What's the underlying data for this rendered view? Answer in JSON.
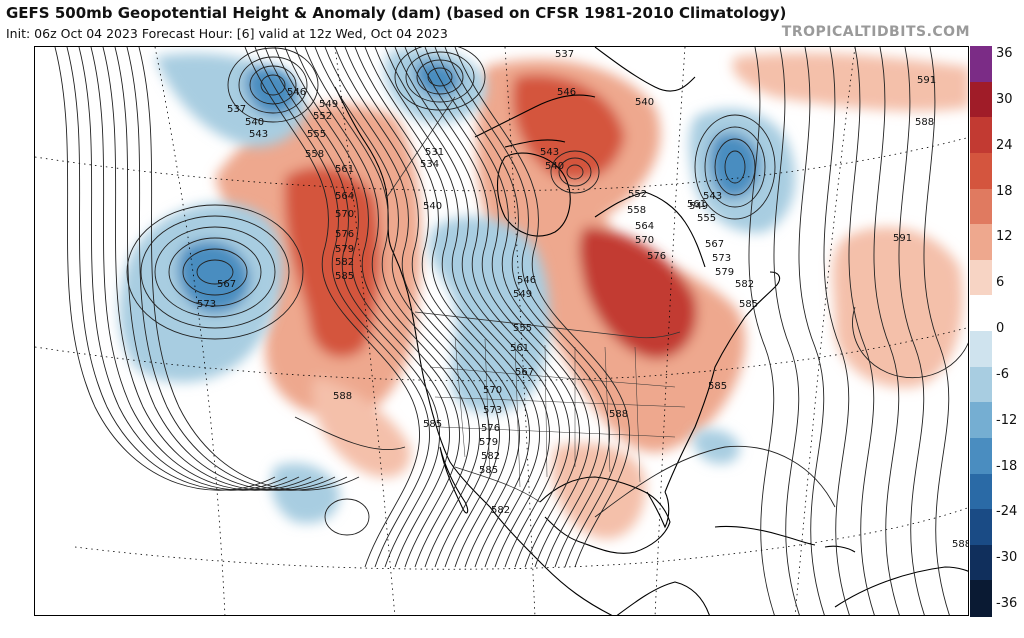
{
  "header": {
    "title": "GEFS 500mb Geopotential Height & Anomaly (dam) (based on CFSR 1981-2010 Climatology)",
    "subtitle": "Init: 06z Oct 04 2023   Forecast Hour: [6]   valid at 12z Wed, Oct 04 2023",
    "watermark": "TROPICALTIDBITS.COM"
  },
  "colorbar": {
    "labels": [
      "36",
      "30",
      "24",
      "18",
      "12",
      "6",
      "0",
      "-6",
      "-12",
      "-18",
      "-24",
      "-30",
      "-36"
    ],
    "colors": [
      "#7b2c86",
      "#a01c28",
      "#c23a32",
      "#d4553e",
      "#e07a60",
      "#eea88e",
      "#f7d4c4",
      "#ffffff",
      "#cfe3ee",
      "#a8cde1",
      "#75aed2",
      "#4a8dc0",
      "#2a6aa6",
      "#1a4b85",
      "#102f5c",
      "#0a1a33"
    ]
  },
  "map": {
    "anomalies": [
      {
        "sign": "negative",
        "strength": -21,
        "region": "Gulf of Alaska west"
      },
      {
        "sign": "negative",
        "strength": -18,
        "region": "Bering / Alaska north"
      },
      {
        "sign": "negative",
        "strength": -18,
        "region": "Arctic north of Alaska"
      },
      {
        "sign": "negative",
        "strength": -12,
        "region": "Northern Plains / Upper Midwest"
      },
      {
        "sign": "negative",
        "strength": -15,
        "region": "Labrador Sea"
      },
      {
        "sign": "negative",
        "strength": -6,
        "region": "Eastern Pacific near Baja"
      },
      {
        "sign": "negative",
        "strength": -6,
        "region": "Caribbean north of Cuba"
      },
      {
        "sign": "positive",
        "strength": 18,
        "region": "Pacific Northwest coast"
      },
      {
        "sign": "positive",
        "strength": 27,
        "region": "Great Lakes / Hudson Bay"
      },
      {
        "sign": "positive",
        "strength": 24,
        "region": "Northern Hudson / Baffin"
      },
      {
        "sign": "positive",
        "strength": 9,
        "region": "Central Atlantic"
      },
      {
        "sign": "positive",
        "strength": 9,
        "region": "Gulf of Mexico"
      },
      {
        "sign": "positive",
        "strength": 6,
        "region": "North Atlantic east"
      }
    ],
    "contour_labels": [
      "537",
      "540",
      "543",
      "546",
      "549",
      "552",
      "555",
      "558",
      "561",
      "564",
      "570",
      "576",
      "579",
      "582",
      "585",
      "567",
      "573",
      "588",
      "585",
      "582",
      "531",
      "534",
      "540",
      "537",
      "546",
      "540",
      "543",
      "540",
      "552",
      "558",
      "564",
      "570",
      "576",
      "561",
      "567",
      "573",
      "579",
      "582",
      "585",
      "555",
      "549",
      "543",
      "546",
      "549",
      "555",
      "561",
      "567",
      "570",
      "573",
      "576",
      "579",
      "582",
      "585",
      "588",
      "591",
      "588",
      "591",
      "585",
      "588"
    ]
  }
}
